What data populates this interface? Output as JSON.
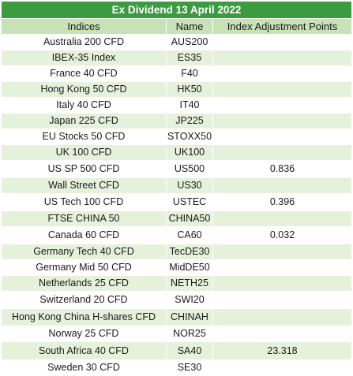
{
  "title": "Ex Dividend 13 April 2022",
  "columns": [
    "Indices",
    "Name",
    "Index Adjustment Points"
  ],
  "rows": [
    {
      "index": "Australia 200 CFD",
      "name": "AUS200",
      "points": ""
    },
    {
      "index": "IBEX-35 Index",
      "name": "ES35",
      "points": ""
    },
    {
      "index": "France 40 CFD",
      "name": "F40",
      "points": ""
    },
    {
      "index": "Hong Kong 50 CFD",
      "name": "HK50",
      "points": ""
    },
    {
      "index": "Italy 40 CFD",
      "name": "IT40",
      "points": ""
    },
    {
      "index": "Japan 225 CFD",
      "name": "JP225",
      "points": ""
    },
    {
      "index": "EU Stocks 50 CFD",
      "name": "STOXX50",
      "points": ""
    },
    {
      "index": "UK 100 CFD",
      "name": "UK100",
      "points": ""
    },
    {
      "index": "US SP 500 CFD",
      "name": "US500",
      "points": "0.836"
    },
    {
      "index": "Wall Street CFD",
      "name": "US30",
      "points": ""
    },
    {
      "index": "US Tech 100 CFD",
      "name": "USTEC",
      "points": "0.396"
    },
    {
      "index": "FTSE CHINA 50",
      "name": "CHINA50",
      "points": ""
    },
    {
      "index": "Canada 60 CFD",
      "name": "CA60",
      "points": "0.032"
    },
    {
      "index": "Germany Tech 40 CFD",
      "name": "TecDE30",
      "points": ""
    },
    {
      "index": "Germany Mid 50 CFD",
      "name": "MidDE50",
      "points": ""
    },
    {
      "index": "Netherlands 25 CFD",
      "name": "NETH25",
      "points": ""
    },
    {
      "index": "Switzerland 20 CFD",
      "name": "SWI20",
      "points": ""
    },
    {
      "index": "Hong Kong China H-shares CFD",
      "name": "CHINAH",
      "points": ""
    },
    {
      "index": "Norway 25 CFD",
      "name": "NOR25",
      "points": ""
    },
    {
      "index": "South Africa 40 CFD",
      "name": "SA40",
      "points": "23.318"
    },
    {
      "index": "Sweden 30 CFD",
      "name": "SE30",
      "points": ""
    }
  ],
  "colors": {
    "title_bg": "#3c9a40",
    "header_bg": "#c7e2b4",
    "stripe_bg": "#e6f1dc"
  }
}
